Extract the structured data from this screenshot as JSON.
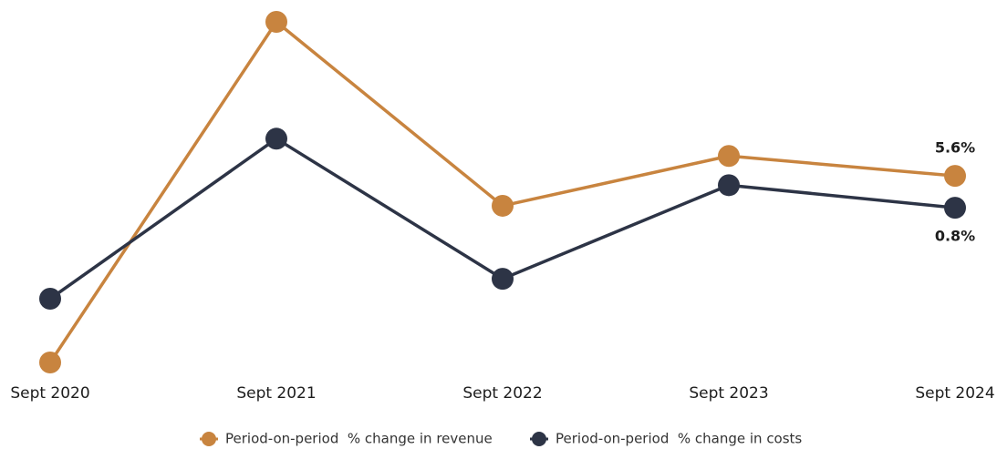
{
  "chart_data": {
    "type": "line",
    "categories": [
      "Sept 2020",
      "Sept 2021",
      "Sept 2022",
      "Sept 2023",
      "Sept 2024"
    ],
    "series": [
      {
        "name": "Period-on-period  % change in revenue",
        "color": "#c8843f",
        "values": [
          -22.5,
          28.8,
          1.1,
          8.6,
          5.6
        ],
        "value_labels": [
          null,
          null,
          null,
          null,
          "5.6%"
        ]
      },
      {
        "name": "Period-on-period  % change in costs",
        "color": "#2d3446",
        "values": [
          -12.9,
          11.2,
          -9.9,
          4.2,
          0.8
        ],
        "value_labels": [
          null,
          null,
          null,
          null,
          "0.8%"
        ]
      }
    ]
  }
}
